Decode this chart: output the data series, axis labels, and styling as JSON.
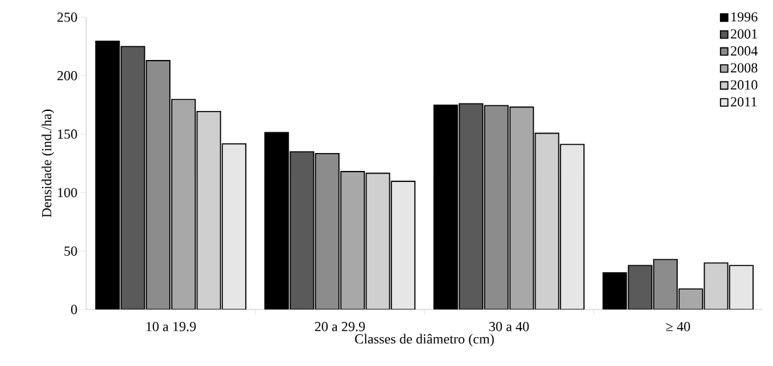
{
  "chart_data": {
    "type": "bar",
    "xlabel": "Classes de diâmetro (cm)",
    "ylabel": "Densidade (ind./ha)",
    "categories": [
      "10 a 19.9",
      "20 a 29.9",
      "30 a 40",
      "≥ 40"
    ],
    "series": [
      {
        "name": "1996",
        "color": "#000000",
        "values": [
          229.5,
          151.3,
          174.8,
          31.4
        ]
      },
      {
        "name": "2001",
        "color": "#5a5a5a",
        "values": [
          224.9,
          134.9,
          176,
          37.6
        ]
      },
      {
        "name": "2004",
        "color": "#8c8c8c",
        "values": [
          212.9,
          133.4,
          174.4,
          42.7
        ]
      },
      {
        "name": "2008",
        "color": "#a8a8a8",
        "values": [
          179.7,
          118,
          173.1,
          17.5
        ]
      },
      {
        "name": "2010",
        "color": "#cfcfcf",
        "values": [
          169.4,
          116.5,
          150.7,
          39.8
        ]
      },
      {
        "name": "2011",
        "color": "#e6e6e6",
        "values": [
          141.7,
          109.6,
          141.2,
          37.6
        ]
      }
    ],
    "ylim": [
      0,
      250
    ],
    "yticks": [
      0,
      50,
      100,
      150,
      200,
      250
    ],
    "grid": false,
    "legend": "top right"
  }
}
